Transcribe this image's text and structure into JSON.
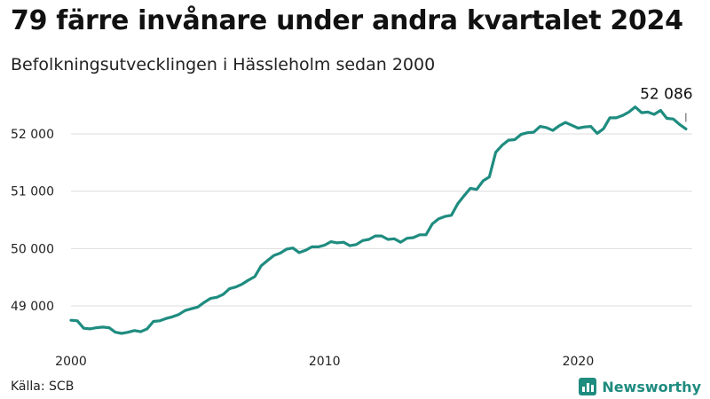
{
  "header": {
    "title": "79 färre invånare under andra kvartalet 2024",
    "subtitle": "Befolkningsutvecklingen i Hässleholm sedan 2000"
  },
  "footer": {
    "source": "Källa: SCB",
    "brand": "Newsworthy",
    "brand_color": "#1f8c80"
  },
  "chart_data": {
    "type": "line",
    "title": "79 färre invånare under andra kvartalet 2024",
    "subtitle": "Befolkningsutvecklingen i Hässleholm sedan 2000",
    "xlabel": "",
    "ylabel": "",
    "x_ticks": [
      "2000",
      "2010",
      "2020"
    ],
    "y_ticks": [
      {
        "value": 49000,
        "label": "49 000"
      },
      {
        "value": 50000,
        "label": "50 000"
      },
      {
        "value": 51000,
        "label": "51 000"
      },
      {
        "value": 52000,
        "label": "52 000"
      }
    ],
    "ylim": [
      48400,
      52550
    ],
    "xlim": [
      2000.0,
      2024.5
    ],
    "grid": "horizontal",
    "line_color": "#1f8c80",
    "annotation": {
      "label": "52 086",
      "x": 2024.25,
      "y": 52086
    },
    "series": [
      {
        "values": [
          {
            "x": 2000.0,
            "y": 48750
          },
          {
            "x": 2000.25,
            "y": 48740
          },
          {
            "x": 2000.5,
            "y": 48610
          },
          {
            "x": 2000.75,
            "y": 48600
          },
          {
            "x": 2001.0,
            "y": 48620
          },
          {
            "x": 2001.25,
            "y": 48630
          },
          {
            "x": 2001.5,
            "y": 48620
          },
          {
            "x": 2001.75,
            "y": 48540
          },
          {
            "x": 2002.0,
            "y": 48520
          },
          {
            "x": 2002.25,
            "y": 48540
          },
          {
            "x": 2002.5,
            "y": 48570
          },
          {
            "x": 2002.75,
            "y": 48550
          },
          {
            "x": 2003.0,
            "y": 48600
          },
          {
            "x": 2003.25,
            "y": 48730
          },
          {
            "x": 2003.5,
            "y": 48740
          },
          {
            "x": 2003.75,
            "y": 48780
          },
          {
            "x": 2004.0,
            "y": 48810
          },
          {
            "x": 2004.25,
            "y": 48850
          },
          {
            "x": 2004.5,
            "y": 48920
          },
          {
            "x": 2004.75,
            "y": 48950
          },
          {
            "x": 2005.0,
            "y": 48980
          },
          {
            "x": 2005.25,
            "y": 49060
          },
          {
            "x": 2005.5,
            "y": 49130
          },
          {
            "x": 2005.75,
            "y": 49150
          },
          {
            "x": 2006.0,
            "y": 49200
          },
          {
            "x": 2006.25,
            "y": 49300
          },
          {
            "x": 2006.5,
            "y": 49330
          },
          {
            "x": 2006.75,
            "y": 49380
          },
          {
            "x": 2007.0,
            "y": 49450
          },
          {
            "x": 2007.25,
            "y": 49510
          },
          {
            "x": 2007.5,
            "y": 49700
          },
          {
            "x": 2007.75,
            "y": 49790
          },
          {
            "x": 2008.0,
            "y": 49880
          },
          {
            "x": 2008.25,
            "y": 49920
          },
          {
            "x": 2008.5,
            "y": 49990
          },
          {
            "x": 2008.75,
            "y": 50010
          },
          {
            "x": 2009.0,
            "y": 49930
          },
          {
            "x": 2009.25,
            "y": 49970
          },
          {
            "x": 2009.5,
            "y": 50030
          },
          {
            "x": 2009.75,
            "y": 50030
          },
          {
            "x": 2010.0,
            "y": 50060
          },
          {
            "x": 2010.25,
            "y": 50120
          },
          {
            "x": 2010.5,
            "y": 50100
          },
          {
            "x": 2010.75,
            "y": 50110
          },
          {
            "x": 2011.0,
            "y": 50050
          },
          {
            "x": 2011.25,
            "y": 50070
          },
          {
            "x": 2011.5,
            "y": 50140
          },
          {
            "x": 2011.75,
            "y": 50160
          },
          {
            "x": 2012.0,
            "y": 50220
          },
          {
            "x": 2012.25,
            "y": 50220
          },
          {
            "x": 2012.5,
            "y": 50160
          },
          {
            "x": 2012.75,
            "y": 50170
          },
          {
            "x": 2013.0,
            "y": 50110
          },
          {
            "x": 2013.25,
            "y": 50180
          },
          {
            "x": 2013.5,
            "y": 50190
          },
          {
            "x": 2013.75,
            "y": 50240
          },
          {
            "x": 2014.0,
            "y": 50240
          },
          {
            "x": 2014.25,
            "y": 50430
          },
          {
            "x": 2014.5,
            "y": 50520
          },
          {
            "x": 2014.75,
            "y": 50560
          },
          {
            "x": 2015.0,
            "y": 50580
          },
          {
            "x": 2015.25,
            "y": 50780
          },
          {
            "x": 2015.5,
            "y": 50920
          },
          {
            "x": 2015.75,
            "y": 51050
          },
          {
            "x": 2016.0,
            "y": 51030
          },
          {
            "x": 2016.25,
            "y": 51180
          },
          {
            "x": 2016.5,
            "y": 51250
          },
          {
            "x": 2016.75,
            "y": 51680
          },
          {
            "x": 2017.0,
            "y": 51800
          },
          {
            "x": 2017.25,
            "y": 51890
          },
          {
            "x": 2017.5,
            "y": 51900
          },
          {
            "x": 2017.75,
            "y": 51990
          },
          {
            "x": 2018.0,
            "y": 52020
          },
          {
            "x": 2018.25,
            "y": 52030
          },
          {
            "x": 2018.5,
            "y": 52130
          },
          {
            "x": 2018.75,
            "y": 52110
          },
          {
            "x": 2019.0,
            "y": 52060
          },
          {
            "x": 2019.25,
            "y": 52140
          },
          {
            "x": 2019.5,
            "y": 52200
          },
          {
            "x": 2019.75,
            "y": 52150
          },
          {
            "x": 2020.0,
            "y": 52100
          },
          {
            "x": 2020.25,
            "y": 52120
          },
          {
            "x": 2020.5,
            "y": 52130
          },
          {
            "x": 2020.75,
            "y": 52010
          },
          {
            "x": 2021.0,
            "y": 52090
          },
          {
            "x": 2021.25,
            "y": 52280
          },
          {
            "x": 2021.5,
            "y": 52280
          },
          {
            "x": 2021.75,
            "y": 52320
          },
          {
            "x": 2022.0,
            "y": 52380
          },
          {
            "x": 2022.25,
            "y": 52470
          },
          {
            "x": 2022.5,
            "y": 52370
          },
          {
            "x": 2022.75,
            "y": 52380
          },
          {
            "x": 2023.0,
            "y": 52340
          },
          {
            "x": 2023.25,
            "y": 52410
          },
          {
            "x": 2023.5,
            "y": 52270
          },
          {
            "x": 2023.75,
            "y": 52260
          },
          {
            "x": 2024.0,
            "y": 52165
          },
          {
            "x": 2024.25,
            "y": 52086
          }
        ]
      }
    ]
  }
}
